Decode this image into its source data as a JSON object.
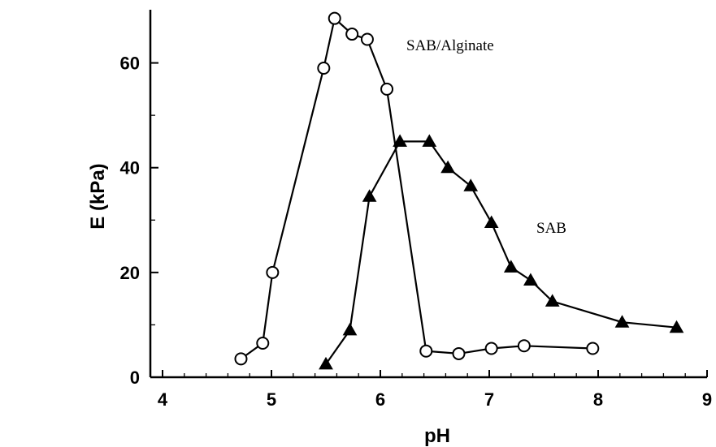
{
  "chart_data": {
    "type": "line",
    "xlabel": "pH",
    "ylabel": "E (kPa)",
    "xlim": [
      4,
      9
    ],
    "ylim": [
      0,
      70
    ],
    "x_ticks": [
      "4",
      "5",
      "6",
      "7",
      "8",
      "9"
    ],
    "y_ticks": [
      "0",
      "20",
      "40",
      "60"
    ],
    "grid": false,
    "legend": "none",
    "series": [
      {
        "name": "SAB/Alginate",
        "label_text": "SAB/Alginate",
        "marker": "open-circle",
        "color": "#000000",
        "points": [
          [
            4.72,
            3.5
          ],
          [
            4.92,
            6.5
          ],
          [
            5.01,
            20
          ],
          [
            5.48,
            59
          ],
          [
            5.58,
            68.5
          ],
          [
            5.74,
            65.5
          ],
          [
            5.88,
            64.5
          ],
          [
            6.06,
            55
          ],
          [
            6.42,
            5
          ],
          [
            6.72,
            4.5
          ],
          [
            7.02,
            5.5
          ],
          [
            7.32,
            6
          ],
          [
            7.95,
            5.5
          ]
        ]
      },
      {
        "name": "SAB",
        "label_text": "SAB",
        "marker": "filled-triangle",
        "color": "#000000",
        "points": [
          [
            5.5,
            2.5
          ],
          [
            5.72,
            9
          ],
          [
            5.9,
            34.5
          ],
          [
            6.18,
            45
          ],
          [
            6.45,
            45
          ],
          [
            6.62,
            40
          ],
          [
            6.83,
            36.5
          ],
          [
            7.02,
            29.5
          ],
          [
            7.2,
            21
          ],
          [
            7.38,
            18.5
          ],
          [
            7.58,
            14.5
          ],
          [
            8.22,
            10.5
          ],
          [
            8.72,
            9.5
          ]
        ]
      }
    ]
  }
}
